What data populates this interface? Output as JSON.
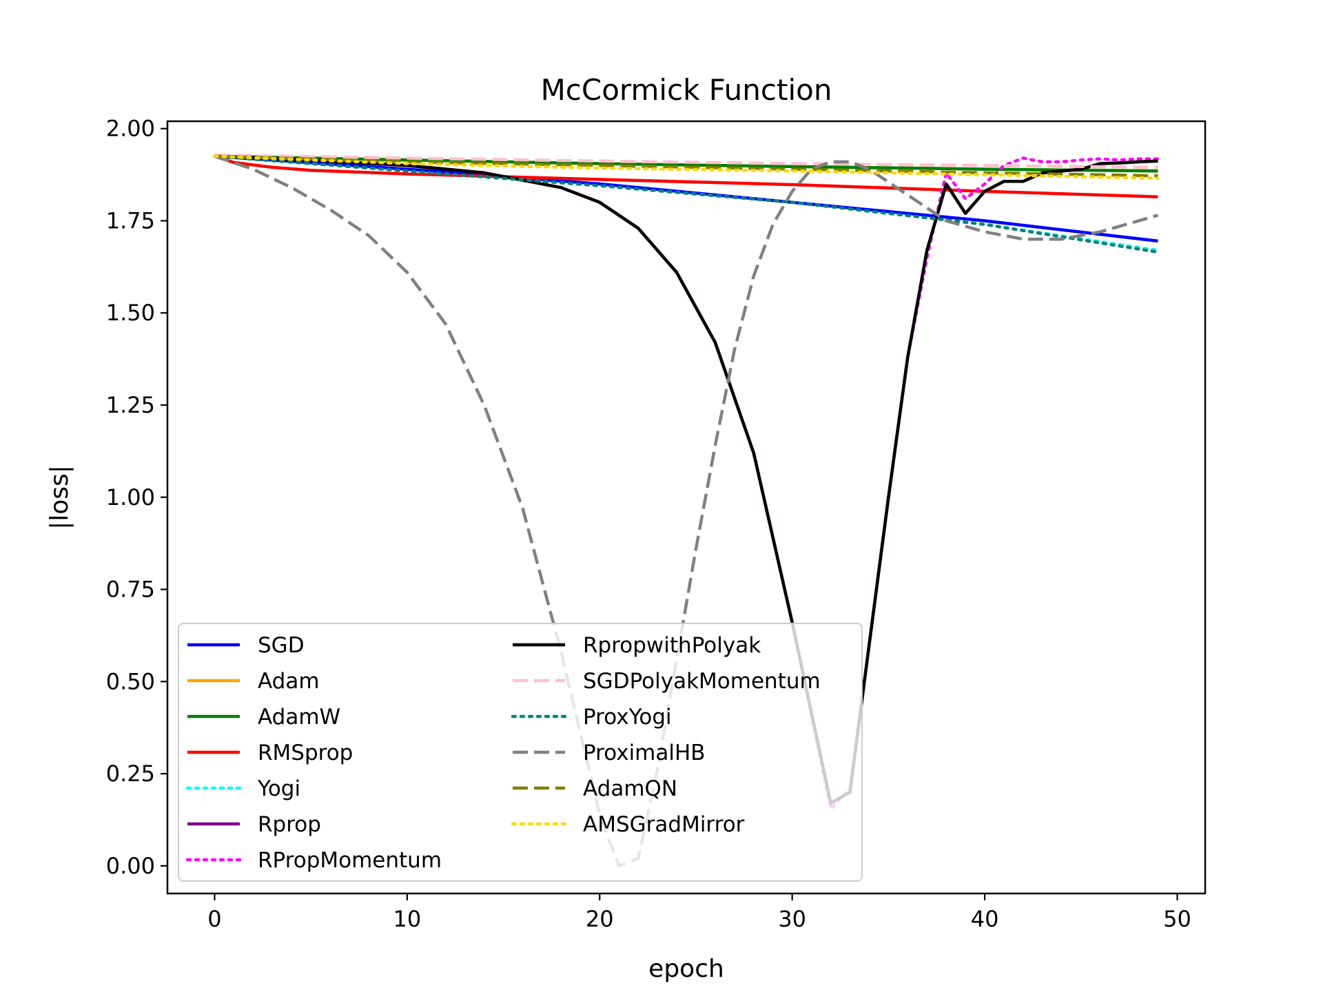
{
  "chart_data": {
    "type": "line",
    "title": "McCormick Function",
    "xlabel": "epoch",
    "ylabel": "|loss|",
    "xlim": [
      -2.45,
      51.45
    ],
    "ylim": [
      -0.075,
      2.02
    ],
    "xticks": [
      0,
      10,
      20,
      30,
      40,
      50
    ],
    "yticks": [
      0.0,
      0.25,
      0.5,
      0.75,
      1.0,
      1.25,
      1.5,
      1.75,
      2.0
    ],
    "ytick_labels": [
      "0.00",
      "0.25",
      "0.50",
      "0.75",
      "1.00",
      "1.25",
      "1.50",
      "1.75",
      "2.00"
    ],
    "grid": false,
    "legend_position": "lower-left",
    "legend_columns": 2,
    "series": [
      {
        "name": "SGD",
        "color": "#0000ff",
        "style": "solid",
        "x": [
          0,
          10,
          20,
          30,
          40,
          49
        ],
        "y": [
          1.925,
          1.89,
          1.85,
          1.8,
          1.75,
          1.695
        ]
      },
      {
        "name": "Adam",
        "color": "#ffa500",
        "style": "solid",
        "x": [
          0,
          10,
          20,
          30,
          40,
          49
        ],
        "y": [
          1.925,
          1.915,
          1.905,
          1.897,
          1.89,
          1.885
        ]
      },
      {
        "name": "AdamW",
        "color": "#008000",
        "style": "solid",
        "x": [
          0,
          10,
          20,
          30,
          40,
          49
        ],
        "y": [
          1.925,
          1.915,
          1.905,
          1.897,
          1.89,
          1.885
        ]
      },
      {
        "name": "RMSprop",
        "color": "#ff0000",
        "style": "solid",
        "x": [
          0,
          1,
          3,
          5,
          10,
          20,
          30,
          40,
          49
        ],
        "y": [
          1.925,
          1.908,
          1.895,
          1.887,
          1.877,
          1.862,
          1.848,
          1.83,
          1.815
        ]
      },
      {
        "name": "Yogi",
        "color": "#00ffff",
        "style": "dotted",
        "x": [
          0,
          10,
          20,
          30,
          40,
          49
        ],
        "y": [
          1.925,
          1.885,
          1.845,
          1.8,
          1.74,
          1.67
        ]
      },
      {
        "name": "Rprop",
        "color": "#800080",
        "style": "solid",
        "x": [
          0,
          5,
          10,
          14,
          18,
          20,
          22,
          24,
          26,
          28,
          30,
          32,
          33,
          34,
          35,
          36,
          37,
          38,
          39,
          40,
          41,
          42,
          43,
          44,
          45,
          46,
          47,
          48,
          49
        ],
        "y": [
          1.925,
          1.915,
          1.9,
          1.88,
          1.84,
          1.8,
          1.73,
          1.61,
          1.42,
          1.12,
          0.66,
          0.17,
          0.2,
          0.6,
          1.0,
          1.38,
          1.67,
          1.85,
          1.77,
          1.83,
          1.857,
          1.857,
          1.88,
          1.885,
          1.89,
          1.905,
          1.907,
          1.91,
          1.912
        ]
      },
      {
        "name": "RPropMomentum",
        "color": "#ff00ff",
        "style": "dotted",
        "x": [
          0,
          5,
          10,
          14,
          18,
          20,
          22,
          24,
          26,
          28,
          30,
          32,
          33,
          34,
          35,
          36,
          37,
          38,
          39,
          40,
          41,
          42,
          43,
          44,
          45,
          46,
          47,
          48,
          49
        ],
        "y": [
          1.925,
          1.915,
          1.9,
          1.88,
          1.84,
          1.8,
          1.73,
          1.61,
          1.42,
          1.12,
          0.66,
          0.155,
          0.21,
          0.6,
          1.0,
          1.38,
          1.65,
          1.88,
          1.81,
          1.85,
          1.9,
          1.92,
          1.91,
          1.91,
          1.915,
          1.918,
          1.915,
          1.918,
          1.918
        ]
      },
      {
        "name": "RpropwithPolyak",
        "color": "#000000",
        "style": "solid",
        "x": [
          0,
          5,
          10,
          14,
          18,
          20,
          22,
          24,
          26,
          28,
          30,
          32,
          33,
          34,
          35,
          36,
          37,
          38,
          39,
          40,
          41,
          42,
          43,
          44,
          45,
          46,
          47,
          48,
          49
        ],
        "y": [
          1.925,
          1.915,
          1.9,
          1.88,
          1.84,
          1.8,
          1.73,
          1.61,
          1.42,
          1.12,
          0.66,
          0.17,
          0.2,
          0.6,
          1.0,
          1.38,
          1.67,
          1.85,
          1.77,
          1.83,
          1.857,
          1.857,
          1.88,
          1.885,
          1.89,
          1.905,
          1.907,
          1.91,
          1.912
        ]
      },
      {
        "name": "SGDPolyakMomentum",
        "color": "#ffc0cb",
        "style": "dashed",
        "x": [
          0,
          10,
          20,
          30,
          40,
          49
        ],
        "y": [
          1.928,
          1.92,
          1.912,
          1.905,
          1.9,
          1.895
        ]
      },
      {
        "name": "ProxYogi",
        "color": "#008080",
        "style": "dotted",
        "x": [
          0,
          10,
          20,
          30,
          40,
          49
        ],
        "y": [
          1.925,
          1.885,
          1.845,
          1.8,
          1.74,
          1.665
        ]
      },
      {
        "name": "ProximalHB",
        "color": "#808080",
        "style": "dashed",
        "x": [
          0,
          2,
          4,
          6,
          8,
          10,
          12,
          14,
          16,
          18,
          19,
          20,
          21,
          22,
          23,
          24,
          25,
          26,
          27,
          28,
          29,
          30,
          31,
          32,
          33,
          34,
          36,
          38,
          40,
          42,
          44,
          46,
          48,
          49
        ],
        "y": [
          1.925,
          1.89,
          1.84,
          1.78,
          1.71,
          1.61,
          1.47,
          1.25,
          0.97,
          0.58,
          0.36,
          0.14,
          0.0,
          0.02,
          0.26,
          0.56,
          0.86,
          1.14,
          1.4,
          1.6,
          1.74,
          1.83,
          1.89,
          1.91,
          1.91,
          1.89,
          1.82,
          1.75,
          1.72,
          1.7,
          1.7,
          1.72,
          1.75,
          1.765
        ]
      },
      {
        "name": "AdamQN",
        "color": "#808000",
        "style": "dashed",
        "x": [
          0,
          10,
          20,
          30,
          40,
          49
        ],
        "y": [
          1.925,
          1.91,
          1.9,
          1.89,
          1.88,
          1.872
        ]
      },
      {
        "name": "AMSGradMirror",
        "color": "#ffd700",
        "style": "dotted",
        "x": [
          0,
          10,
          20,
          30,
          40,
          49
        ],
        "y": [
          1.925,
          1.905,
          1.893,
          1.885,
          1.875,
          1.865
        ]
      }
    ]
  }
}
